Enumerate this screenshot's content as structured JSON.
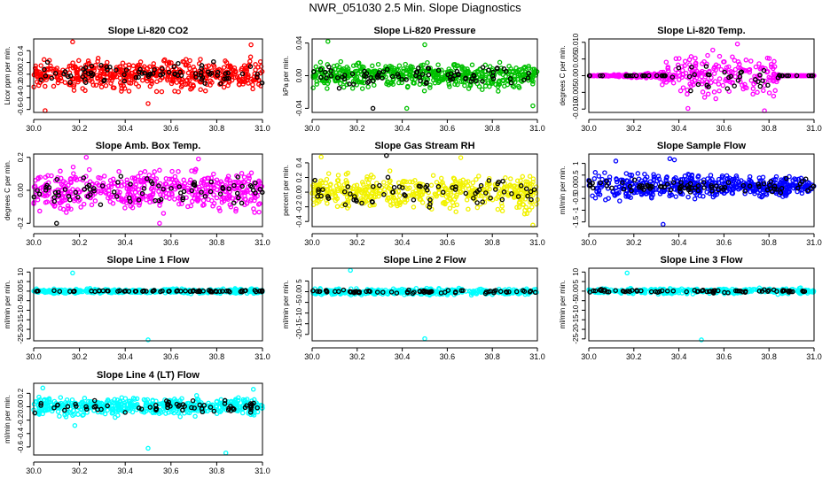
{
  "title": "NWR_051030  2.5 Min. Slope Diagnostics",
  "chart_data": [
    {
      "type": "scatter",
      "title": "Slope Li-820 CO2",
      "ylabel": "Licor ppm per min.",
      "xlim": [
        30.0,
        31.0
      ],
      "ylim": [
        -0.65,
        0.6
      ],
      "xticks": [
        "30.0",
        "30.2",
        "30.4",
        "30.6",
        "30.8",
        "31.0"
      ],
      "yticks": [
        -0.6,
        -0.4,
        -0.2,
        0.0,
        0.2,
        0.4
      ],
      "series": [
        {
          "name": "all",
          "color": "#ff0000",
          "n": 520,
          "scale": 0.17,
          "amp": [
            [
              30.0,
              1
            ]
          ],
          "outliers": [
            [
              30.17,
              0.55
            ],
            [
              30.05,
              -0.62
            ],
            [
              30.5,
              -0.5
            ],
            [
              30.95,
              0.5
            ]
          ]
        },
        {
          "name": "subset",
          "color": "#000000",
          "n": 80,
          "scale": 0.12,
          "amp": [
            [
              30.0,
              1
            ]
          ],
          "outliers": []
        }
      ]
    },
    {
      "type": "scatter",
      "title": "Slope Li-820 Pressure",
      "ylabel": "kPa per min.",
      "xlim": [
        30.0,
        31.0
      ],
      "ylim": [
        -0.045,
        0.045
      ],
      "xticks": [
        "30.0",
        "30.2",
        "30.4",
        "30.6",
        "30.8",
        "31.0"
      ],
      "yticks": [
        -0.04,
        0.0,
        0.04
      ],
      "series": [
        {
          "name": "all",
          "color": "#00c000",
          "n": 520,
          "scale": 0.01,
          "amp": [
            [
              30.0,
              1
            ]
          ],
          "outliers": [
            [
              30.07,
              0.042
            ],
            [
              30.42,
              -0.04
            ],
            [
              30.98,
              -0.037
            ],
            [
              30.5,
              0.038
            ]
          ]
        },
        {
          "name": "subset",
          "color": "#000000",
          "n": 80,
          "scale": 0.008,
          "amp": [
            [
              30.0,
              1
            ]
          ],
          "outliers": [
            [
              30.27,
              -0.04
            ]
          ]
        }
      ]
    },
    {
      "type": "scatter",
      "title": "Slope Li-820 Temp.",
      "ylabel": "degrees C per min.",
      "xlim": [
        30.0,
        31.0
      ],
      "ylim": [
        -0.011,
        0.011
      ],
      "xticks": [
        "30.0",
        "30.2",
        "30.4",
        "30.6",
        "30.8",
        "31.0"
      ],
      "yticks": [
        -0.01,
        -0.005,
        0.0,
        0.005,
        0.01
      ],
      "series": [
        {
          "name": "all",
          "color": "#ff00ff",
          "n": 400,
          "scale": 0.004,
          "amp": [
            [
              30.0,
              0
            ],
            [
              30.3,
              0.15
            ],
            [
              30.38,
              1
            ],
            [
              30.82,
              1
            ],
            [
              30.85,
              0
            ],
            [
              31.0,
              0
            ]
          ],
          "outliers": [
            [
              30.66,
              0.0095
            ],
            [
              30.44,
              -0.0098
            ],
            [
              30.78,
              -0.0105
            ]
          ]
        },
        {
          "name": "subset",
          "color": "#000000",
          "n": 60,
          "scale": 0.003,
          "amp": [
            [
              30.0,
              0
            ],
            [
              30.35,
              0
            ],
            [
              30.4,
              1
            ],
            [
              30.8,
              1
            ],
            [
              30.85,
              0
            ],
            [
              31.0,
              0
            ]
          ],
          "outliers": []
        }
      ]
    },
    {
      "type": "scatter",
      "title": "Slope Amb. Box Temp.",
      "ylabel": "degrees C per min.",
      "xlim": [
        30.0,
        31.0
      ],
      "ylim": [
        -0.22,
        0.22
      ],
      "xticks": [
        "30.0",
        "30.2",
        "30.4",
        "30.6",
        "30.8",
        "31.0"
      ],
      "yticks": [
        -0.2,
        0.0,
        0.2
      ],
      "series": [
        {
          "name": "all",
          "color": "#ff00ff",
          "n": 480,
          "scale": 0.08,
          "amp": [
            [
              30.0,
              1
            ]
          ],
          "outliers": [
            [
              30.23,
              0.2
            ],
            [
              30.55,
              -0.2
            ],
            [
              30.72,
              0.19
            ]
          ]
        },
        {
          "name": "subset",
          "color": "#000000",
          "n": 80,
          "scale": 0.06,
          "amp": [
            [
              30.0,
              1
            ]
          ],
          "outliers": [
            [
              30.1,
              -0.2
            ]
          ]
        }
      ]
    },
    {
      "type": "scatter",
      "title": "Slope Gas Stream RH",
      "ylabel": "percent per min.",
      "xlim": [
        30.0,
        31.0
      ],
      "ylim": [
        -0.47,
        0.52
      ],
      "xticks": [
        "30.0",
        "30.2",
        "30.4",
        "30.6",
        "30.8",
        "31.0"
      ],
      "yticks": [
        -0.4,
        -0.2,
        0.0,
        0.2,
        0.4
      ],
      "series": [
        {
          "name": "all",
          "color": "#f2f200",
          "n": 480,
          "scale": 0.15,
          "amp": [
            [
              30.0,
              1
            ]
          ],
          "outliers": [
            [
              30.04,
              0.48
            ],
            [
              30.98,
              -0.45
            ],
            [
              30.66,
              0.47
            ]
          ]
        },
        {
          "name": "subset",
          "color": "#000000",
          "n": 70,
          "scale": 0.12,
          "amp": [
            [
              30.0,
              1
            ]
          ],
          "outliers": [
            [
              30.33,
              0.5
            ]
          ]
        }
      ]
    },
    {
      "type": "scatter",
      "title": "Slope Sample Flow",
      "ylabel": "ml/min per min.",
      "xlim": [
        30.0,
        31.0
      ],
      "ylim": [
        -1.7,
        1.4
      ],
      "xticks": [
        "30.0",
        "30.2",
        "30.4",
        "30.6",
        "30.8",
        "31.0"
      ],
      "yticks": [
        -1.5,
        -1.0,
        -0.5,
        0.0,
        0.5,
        1.0
      ],
      "series": [
        {
          "name": "all",
          "color": "#0000ff",
          "n": 520,
          "scale": 0.35,
          "amp": [
            [
              30.0,
              1.3
            ],
            [
              30.5,
              0.9
            ],
            [
              31.0,
              0.7
            ]
          ],
          "outliers": [
            [
              30.33,
              -1.6
            ],
            [
              30.36,
              1.2
            ],
            [
              30.38,
              1.15
            ],
            [
              30.12,
              1.1
            ]
          ]
        },
        {
          "name": "subset",
          "color": "#000000",
          "n": 80,
          "scale": 0.22,
          "amp": [
            [
              30.0,
              1
            ]
          ],
          "outliers": []
        }
      ]
    },
    {
      "type": "scatter",
      "title": "Slope Line 1 Flow",
      "ylabel": "ml/min per min.",
      "xlim": [
        30.0,
        31.0
      ],
      "ylim": [
        -26,
        12
      ],
      "xticks": [
        "30.0",
        "30.2",
        "30.4",
        "30.6",
        "30.8",
        "31.0"
      ],
      "yticks": [
        -25,
        -20,
        -15,
        -10,
        -5,
        0,
        5,
        10
      ],
      "series": [
        {
          "name": "all",
          "color": "#00ffff",
          "n": 360,
          "scale": 0.8,
          "amp": [
            [
              30.0,
              1
            ]
          ],
          "outliers": [
            [
              30.17,
              9.5
            ],
            [
              30.5,
              -25.5
            ]
          ]
        },
        {
          "name": "subset",
          "color": "#000000",
          "n": 70,
          "scale": 0.3,
          "amp": [
            [
              30.0,
              1
            ]
          ],
          "outliers": []
        }
      ]
    },
    {
      "type": "scatter",
      "title": "Slope Line 2 Flow",
      "ylabel": "ml/min per min.",
      "xlim": [
        30.0,
        31.0
      ],
      "ylim": [
        -23,
        11
      ],
      "xticks": [
        "30.0",
        "30.2",
        "30.4",
        "30.6",
        "30.8",
        "31.0"
      ],
      "yticks": [
        -20,
        -15,
        -10,
        -5,
        0,
        5
      ],
      "series": [
        {
          "name": "all",
          "color": "#00ffff",
          "n": 360,
          "scale": 1.0,
          "amp": [
            [
              30.0,
              1
            ]
          ],
          "outliers": [
            [
              30.17,
              10
            ],
            [
              30.5,
              -22
            ]
          ]
        },
        {
          "name": "subset",
          "color": "#000000",
          "n": 70,
          "scale": 0.5,
          "amp": [
            [
              30.0,
              1
            ]
          ],
          "outliers": []
        }
      ]
    },
    {
      "type": "scatter",
      "title": "Slope Line 3 Flow",
      "ylabel": "ml/min per min.",
      "xlim": [
        30.0,
        31.0
      ],
      "ylim": [
        -26,
        12
      ],
      "xticks": [
        "30.0",
        "30.2",
        "30.4",
        "30.6",
        "30.8",
        "31.0"
      ],
      "yticks": [
        -25,
        -20,
        -15,
        -10,
        -5,
        0,
        5,
        10
      ],
      "series": [
        {
          "name": "all",
          "color": "#00ffff",
          "n": 360,
          "scale": 0.9,
          "amp": [
            [
              30.0,
              1
            ]
          ],
          "outliers": [
            [
              30.17,
              9.5
            ],
            [
              30.5,
              -25.5
            ]
          ]
        },
        {
          "name": "subset",
          "color": "#000000",
          "n": 70,
          "scale": 0.6,
          "amp": [
            [
              30.0,
              1
            ]
          ],
          "outliers": []
        }
      ]
    },
    {
      "type": "scatter",
      "title": "Slope Line 4 (LT) Flow",
      "ylabel": "ml/min per min.",
      "xlim": [
        30.0,
        31.0
      ],
      "ylim": [
        -0.72,
        0.35
      ],
      "xticks": [
        "30.0",
        "30.2",
        "30.4",
        "30.6",
        "30.8",
        "31.0"
      ],
      "yticks": [
        -0.6,
        -0.4,
        -0.2,
        0.0,
        0.2
      ],
      "series": [
        {
          "name": "all",
          "color": "#00ffff",
          "n": 480,
          "scale": 0.09,
          "amp": [
            [
              30.0,
              1
            ]
          ],
          "outliers": [
            [
              30.5,
              -0.62
            ],
            [
              30.84,
              -0.69
            ],
            [
              30.18,
              -0.28
            ],
            [
              30.04,
              0.28
            ],
            [
              30.96,
              0.26
            ]
          ]
        },
        {
          "name": "subset",
          "color": "#000000",
          "n": 70,
          "scale": 0.06,
          "amp": [
            [
              30.0,
              1
            ]
          ],
          "outliers": []
        }
      ]
    }
  ]
}
